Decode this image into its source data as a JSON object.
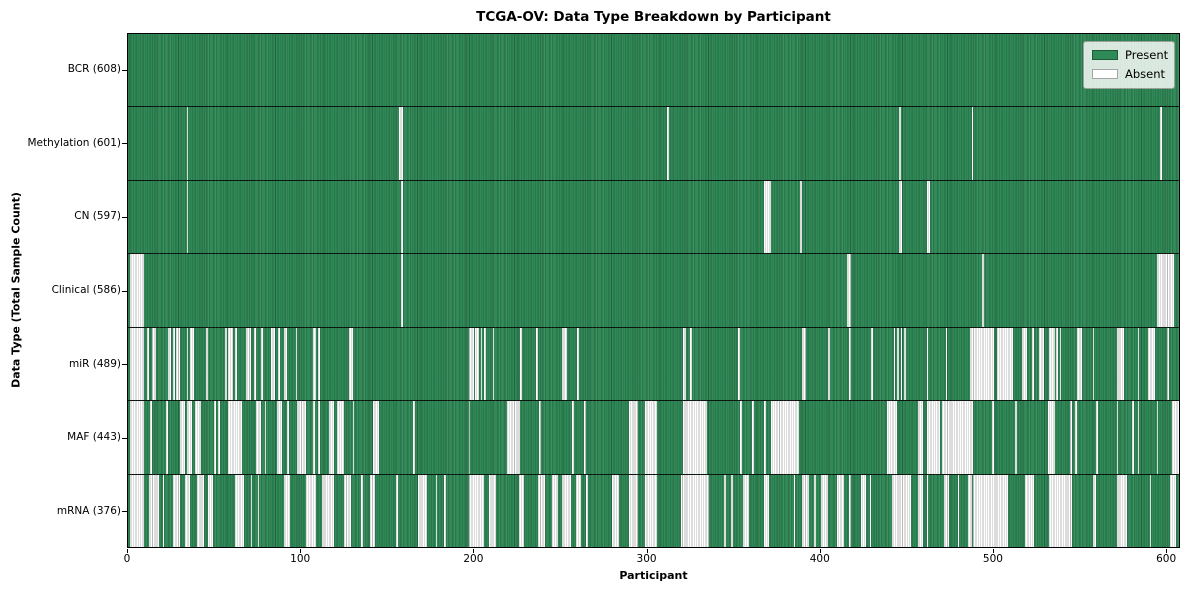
{
  "legend": {
    "present_label": "Present",
    "absent_label": "Absent"
  },
  "colors": {
    "present": "#2E8B57",
    "absent": "#FFFFFF",
    "row_separator": "#000000",
    "plot_border": "#000000",
    "legend_background": "#E8ECE8",
    "text": "#000000"
  },
  "chart_data": {
    "type": "heatmap",
    "title": "TCGA-OV: Data Type Breakdown by Participant",
    "xlabel": "Participant",
    "ylabel": "Data Type (Total Sample Count)",
    "legend_position": "upper right",
    "x_ticks": [
      0,
      100,
      200,
      300,
      400,
      500,
      600
    ],
    "x_range": [
      0,
      608
    ],
    "n_participants": 608,
    "cell_states": [
      "Present",
      "Absent"
    ],
    "rows": [
      {
        "label": "BCR (608)",
        "name": "BCR",
        "total_samples": 608,
        "absent_ranges": []
      },
      {
        "label": "Methylation (601)",
        "name": "Methylation",
        "total_samples": 601,
        "absent_ranges": [
          [
            34,
            34
          ],
          [
            157,
            158
          ],
          [
            312,
            312
          ],
          [
            446,
            446
          ],
          [
            488,
            488
          ],
          [
            597,
            597
          ]
        ]
      },
      {
        "label": "CN (597)",
        "name": "CN",
        "total_samples": 597,
        "absent_ranges": [
          [
            34,
            34
          ],
          [
            158,
            158
          ],
          [
            368,
            371
          ],
          [
            389,
            389
          ],
          [
            446,
            447
          ],
          [
            462,
            463
          ]
        ]
      },
      {
        "label": "Clinical (586)",
        "name": "Clinical",
        "total_samples": 586,
        "absent_ranges": [
          [
            1,
            8
          ],
          [
            158,
            158
          ],
          [
            416,
            417
          ],
          [
            494,
            494
          ],
          [
            595,
            604
          ]
        ]
      },
      {
        "label": "miR (489)",
        "name": "miR",
        "total_samples": 489,
        "absent_ranges": [
          [
            1,
            8
          ],
          [
            11,
            11
          ],
          [
            14,
            15
          ],
          [
            23,
            24
          ],
          [
            26,
            26
          ],
          [
            28,
            29
          ],
          [
            34,
            34
          ],
          [
            36,
            37
          ],
          [
            45,
            45
          ],
          [
            56,
            56
          ],
          [
            58,
            60
          ],
          [
            62,
            62
          ],
          [
            68,
            70
          ],
          [
            73,
            73
          ],
          [
            77,
            77
          ],
          [
            83,
            84
          ],
          [
            87,
            87
          ],
          [
            90,
            91
          ],
          [
            97,
            97
          ],
          [
            107,
            108
          ],
          [
            110,
            110
          ],
          [
            128,
            129
          ],
          [
            197,
            199
          ],
          [
            201,
            202
          ],
          [
            204,
            204
          ],
          [
            206,
            206
          ],
          [
            211,
            211
          ],
          [
            227,
            227
          ],
          [
            236,
            236
          ],
          [
            251,
            253
          ],
          [
            260,
            260
          ],
          [
            321,
            322
          ],
          [
            325,
            325
          ],
          [
            353,
            353
          ],
          [
            390,
            391
          ],
          [
            405,
            405
          ],
          [
            417,
            417
          ],
          [
            430,
            430
          ],
          [
            443,
            443
          ],
          [
            445,
            445
          ],
          [
            447,
            447
          ],
          [
            449,
            449
          ],
          [
            462,
            462
          ],
          [
            473,
            473
          ],
          [
            487,
            500
          ],
          [
            503,
            511
          ],
          [
            517,
            519
          ],
          [
            523,
            523
          ],
          [
            527,
            529
          ],
          [
            533,
            535
          ],
          [
            537,
            537
          ],
          [
            539,
            539
          ],
          [
            549,
            551
          ],
          [
            558,
            558
          ],
          [
            572,
            575
          ],
          [
            584,
            584
          ],
          [
            590,
            593
          ],
          [
            601,
            601
          ]
        ]
      },
      {
        "label": "MAF (443)",
        "name": "MAF",
        "total_samples": 443,
        "absent_ranges": [
          [
            1,
            8
          ],
          [
            13,
            13
          ],
          [
            22,
            22
          ],
          [
            30,
            32
          ],
          [
            34,
            36
          ],
          [
            39,
            41
          ],
          [
            50,
            50
          ],
          [
            52,
            52
          ],
          [
            58,
            65
          ],
          [
            74,
            76
          ],
          [
            79,
            79
          ],
          [
            86,
            88
          ],
          [
            92,
            92
          ],
          [
            98,
            102
          ],
          [
            107,
            107
          ],
          [
            110,
            110
          ],
          [
            116,
            118
          ],
          [
            121,
            124
          ],
          [
            130,
            130
          ],
          [
            142,
            144
          ],
          [
            165,
            165
          ],
          [
            197,
            197
          ],
          [
            219,
            226
          ],
          [
            238,
            238
          ],
          [
            257,
            257
          ],
          [
            264,
            264
          ],
          [
            290,
            294
          ],
          [
            299,
            305
          ],
          [
            321,
            334
          ],
          [
            354,
            354
          ],
          [
            361,
            361
          ],
          [
            368,
            368
          ],
          [
            372,
            387
          ],
          [
            439,
            444
          ],
          [
            457,
            459
          ],
          [
            462,
            469
          ],
          [
            471,
            488
          ],
          [
            500,
            500
          ],
          [
            513,
            513
          ],
          [
            532,
            535
          ],
          [
            545,
            545
          ],
          [
            548,
            548
          ],
          [
            560,
            560
          ],
          [
            572,
            572
          ],
          [
            581,
            581
          ],
          [
            584,
            584
          ],
          [
            595,
            595
          ],
          [
            604,
            607
          ]
        ]
      },
      {
        "label": "mRNA (376)",
        "name": "mRNA",
        "total_samples": 376,
        "absent_ranges": [
          [
            1,
            8
          ],
          [
            12,
            17
          ],
          [
            20,
            20
          ],
          [
            26,
            29
          ],
          [
            33,
            35
          ],
          [
            40,
            43
          ],
          [
            46,
            48
          ],
          [
            62,
            66
          ],
          [
            71,
            71
          ],
          [
            75,
            75
          ],
          [
            90,
            93
          ],
          [
            103,
            108
          ],
          [
            112,
            118
          ],
          [
            125,
            128
          ],
          [
            135,
            135
          ],
          [
            140,
            142
          ],
          [
            155,
            155
          ],
          [
            168,
            172
          ],
          [
            178,
            178
          ],
          [
            183,
            183
          ],
          [
            197,
            205
          ],
          [
            209,
            212
          ],
          [
            226,
            228
          ],
          [
            237,
            240
          ],
          [
            245,
            248
          ],
          [
            251,
            255
          ],
          [
            259,
            261
          ],
          [
            265,
            265
          ],
          [
            280,
            283
          ],
          [
            290,
            294
          ],
          [
            299,
            305
          ],
          [
            320,
            335
          ],
          [
            345,
            345
          ],
          [
            349,
            349
          ],
          [
            356,
            358
          ],
          [
            368,
            370
          ],
          [
            385,
            385
          ],
          [
            390,
            393
          ],
          [
            397,
            397
          ],
          [
            401,
            404
          ],
          [
            410,
            413
          ],
          [
            417,
            417
          ],
          [
            424,
            426
          ],
          [
            429,
            429
          ],
          [
            442,
            452
          ],
          [
            457,
            459
          ],
          [
            462,
            462
          ],
          [
            472,
            474
          ],
          [
            480,
            480
          ],
          [
            486,
            487
          ],
          [
            489,
            508
          ],
          [
            519,
            523
          ],
          [
            533,
            545
          ],
          [
            558,
            559
          ],
          [
            572,
            577
          ],
          [
            591,
            591
          ],
          [
            603,
            605
          ]
        ]
      }
    ]
  }
}
